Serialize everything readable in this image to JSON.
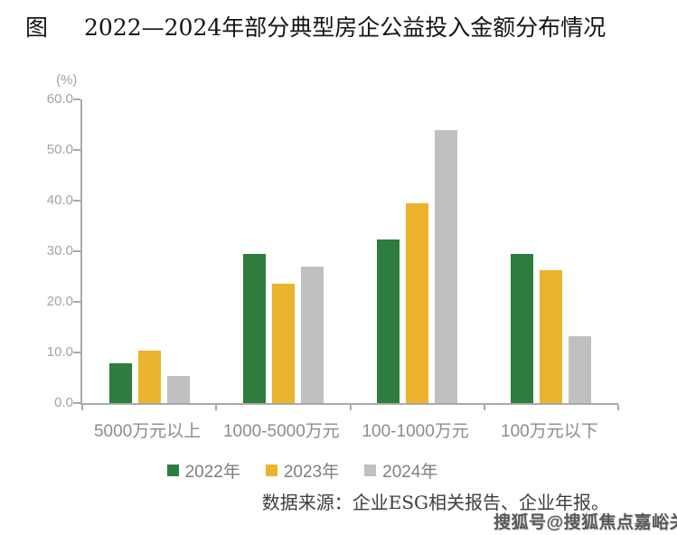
{
  "title": {
    "prefix": "图",
    "text": "2022—2024年部分典型房企公益投入金额分布情况"
  },
  "chart_data": {
    "type": "bar",
    "title": "2022—2024年部分典型房企公益投入金额分布情况",
    "unit_label": "(%)",
    "categories": [
      "5000万元以上",
      "1000-5000万元",
      "100-1000万元",
      "100万元以下"
    ],
    "series": [
      {
        "name": "2022年",
        "color": "#2e7d3e",
        "values": [
          7.9,
          29.5,
          32.4,
          29.5
        ]
      },
      {
        "name": "2023年",
        "color": "#ecb42c",
        "values": [
          10.3,
          23.6,
          39.4,
          26.2
        ]
      },
      {
        "name": "2024年",
        "color": "#c0c0c2",
        "values": [
          5.3,
          26.9,
          54.0,
          13.3
        ]
      }
    ],
    "y_axis": {
      "min": 0,
      "max": 60,
      "step": 10,
      "tick_labels": [
        "0.0",
        "10.0",
        "20.0",
        "30.0",
        "40.0",
        "50.0",
        "60.0"
      ]
    },
    "xlabel": "",
    "ylabel": "(%)",
    "ylim": [
      0,
      60
    ],
    "grid": false,
    "legend_position": "bottom",
    "axis_color": "#a9a9a9"
  },
  "footer": {
    "source": "数据来源：企业ESG相关报告、企业年报。",
    "watermark": "搜狐号@搜狐焦点嘉峪关站"
  }
}
